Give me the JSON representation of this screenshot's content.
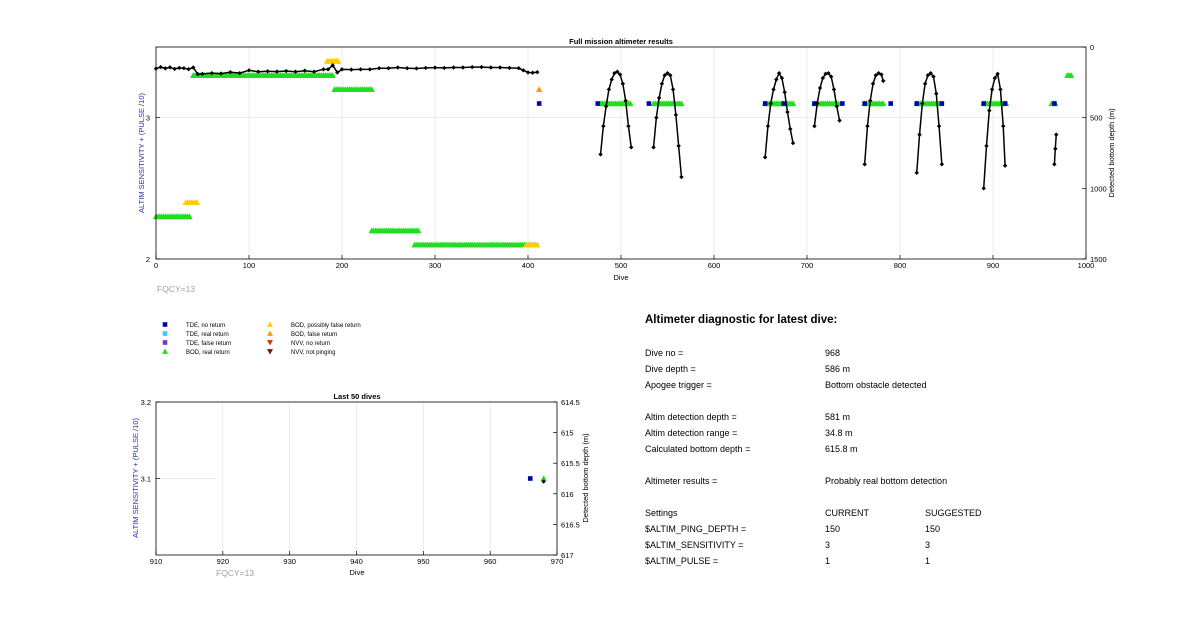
{
  "main_chart": {
    "title": "Full mission altimeter results",
    "xlabel": "Dive",
    "ylabel_left": "ALTIM SENSITIVITY + (PULSE /10)",
    "ylabel_right": "Detected bottom depth (m)",
    "fqcy": "FQCY=13"
  },
  "last_chart": {
    "title": "Last 50 dives",
    "xlabel": "Dive",
    "ylabel_left": "ALTIM SENSITIVITY + (PULSE /10)",
    "ylabel_right": "Detected bottom depth (m)",
    "fqcy": "FQCY=13"
  },
  "legend": [
    {
      "label": "TDE, no return",
      "marker": "square",
      "color": "#0000aa"
    },
    {
      "label": "TDE, real return",
      "marker": "square",
      "color": "#33ccee"
    },
    {
      "label": "TDE, false return",
      "marker": "square",
      "color": "#7733cc"
    },
    {
      "label": "BOD, real return",
      "marker": "triangle-up",
      "color": "#22dd22"
    },
    {
      "label": "BOD, possibly false return",
      "marker": "triangle-up",
      "color": "#ffcc00"
    },
    {
      "label": "BOD, false return",
      "marker": "triangle-up",
      "color": "#ff9900"
    },
    {
      "label": "NVV, no return",
      "marker": "triangle-down",
      "color": "#dd3300"
    },
    {
      "label": "NVV, not pinging",
      "marker": "triangle-down",
      "color": "#771100"
    }
  ],
  "diagnostic": {
    "title": "Altimeter diagnostic for latest dive:",
    "rows1": [
      {
        "label": "Dive no =",
        "value": "968"
      },
      {
        "label": "Dive depth =",
        "value": "586 m"
      },
      {
        "label": "Apogee trigger =",
        "value": "Bottom obstacle detected"
      }
    ],
    "rows2": [
      {
        "label": "Altim detection depth =",
        "value": "581 m"
      },
      {
        "label": "Altim detection range =",
        "value": "34.8 m"
      },
      {
        "label": "Calculated bottom depth =",
        "value": "615.8 m"
      }
    ],
    "result": {
      "label": "Altimeter results =",
      "value": "Probably real bottom detection"
    },
    "settings_header": {
      "label": "Settings",
      "current": "CURRENT",
      "suggested": "SUGGESTED"
    },
    "settings": [
      {
        "label": "$ALTIM_PING_DEPTH =",
        "current": "150",
        "suggested": "150"
      },
      {
        "label": "$ALTIM_SENSITIVITY =",
        "current": "3",
        "suggested": "3"
      },
      {
        "label": "$ALTIM_PULSE =",
        "current": "1",
        "suggested": "1"
      }
    ]
  },
  "chart_data": [
    {
      "type": "scatter",
      "title": "Full mission altimeter results",
      "xlabel": "Dive",
      "ylabel": "ALTIM SENSITIVITY + (PULSE /10)",
      "y2label": "Detected bottom depth (m)",
      "xlim": [
        0,
        1000
      ],
      "ylim": [
        2,
        3.5
      ],
      "y2lim": [
        1500,
        0
      ],
      "y2_reversed": true,
      "xticks": [
        0,
        100,
        200,
        300,
        400,
        500,
        600,
        700,
        800,
        900,
        1000
      ],
      "yticks": [
        2,
        3
      ],
      "y2ticks": [
        0,
        500,
        1000,
        1500
      ],
      "grid": true,
      "marker_series": [
        {
          "name": "BOD, real return",
          "color": "#22dd22",
          "marker": "triangle-up",
          "y": 3.3,
          "ranges": [
            [
              40,
              190
            ],
            [
              980,
              985
            ]
          ]
        },
        {
          "name": "BOD, real return",
          "color": "#22dd22",
          "marker": "triangle-up",
          "y": 3.2,
          "ranges": [
            [
              192,
              232
            ]
          ]
        },
        {
          "name": "BOD, real return",
          "color": "#22dd22",
          "marker": "triangle-up",
          "y": 2.3,
          "ranges": [
            [
              0,
              37
            ]
          ]
        },
        {
          "name": "BOD, real return",
          "color": "#22dd22",
          "marker": "triangle-up",
          "y": 2.2,
          "ranges": [
            [
              232,
              282
            ]
          ]
        },
        {
          "name": "BOD, real return",
          "color": "#22dd22",
          "marker": "triangle-up",
          "y": 2.1,
          "ranges": [
            [
              278,
              408
            ]
          ]
        },
        {
          "name": "BOD, real return",
          "color": "#22dd22",
          "marker": "triangle-up",
          "y": 3.1,
          "ranges": [
            [
              478,
              511
            ],
            [
              535,
              565
            ],
            [
              655,
              685
            ],
            [
              708,
              735
            ],
            [
              762,
              782
            ],
            [
              818,
              845
            ],
            [
              890,
              915
            ],
            [
              963,
              968
            ]
          ]
        },
        {
          "name": "BOD, possibly false return",
          "color": "#ffcc00",
          "marker": "triangle-up",
          "y": 3.4,
          "ranges": [
            [
              184,
              196
            ]
          ]
        },
        {
          "name": "BOD, possibly false return",
          "color": "#ffcc00",
          "marker": "triangle-up",
          "y": 2.4,
          "ranges": [
            [
              32,
              44
            ]
          ]
        },
        {
          "name": "BOD, possibly false return",
          "color": "#ffcc00",
          "marker": "triangle-up",
          "y": 2.1,
          "ranges": [
            [
              398,
              410
            ]
          ]
        },
        {
          "name": "BOD, false return",
          "color": "#ff9900",
          "marker": "triangle-up",
          "y": 3.2,
          "points": [
            412
          ]
        }
      ],
      "tde_no_return": {
        "name": "TDE, no return",
        "color": "#0000aa",
        "y": 3.1,
        "x": [
          412,
          475,
          530,
          655,
          675,
          708,
          738,
          762,
          790,
          818,
          845,
          890,
          913,
          966
        ]
      },
      "depth_series_color": "#000000",
      "depth_series": [
        {
          "x": [
            0,
            5,
            10,
            15,
            20,
            25,
            30,
            35,
            40,
            45,
            50,
            60,
            70,
            80,
            90,
            100,
            110,
            120,
            130,
            140,
            150,
            160,
            170,
            180,
            185,
            190,
            195,
            200,
            210,
            220,
            230,
            240,
            250,
            260,
            270,
            280,
            290,
            300,
            310,
            320,
            330,
            340,
            350,
            360,
            370,
            380,
            390,
            395,
            400,
            405,
            410
          ],
          "y": [
            153,
            142,
            151,
            144,
            155,
            148,
            150,
            157,
            145,
            192,
            190,
            185,
            188,
            178,
            185,
            165,
            175,
            172,
            174,
            170,
            175,
            168,
            175,
            158,
            158,
            130,
            180,
            158,
            160,
            158,
            158,
            150,
            150,
            145,
            150,
            152,
            148,
            146,
            148,
            145,
            145,
            142,
            142,
            145,
            145,
            148,
            150,
            165,
            180,
            182,
            178
          ]
        },
        {
          "x": [
            478,
            481,
            484,
            487,
            490,
            493,
            496,
            499,
            502,
            505,
            508,
            511
          ],
          "y": [
            760,
            560,
            420,
            300,
            230,
            185,
            175,
            195,
            260,
            380,
            560,
            710
          ]
        },
        {
          "x": [
            535,
            538,
            541,
            544,
            547,
            550,
            553,
            556,
            559,
            562,
            565
          ],
          "y": [
            710,
            500,
            360,
            260,
            200,
            185,
            200,
            300,
            480,
            700,
            920
          ]
        },
        {
          "x": [
            655,
            658,
            661,
            664,
            667,
            670,
            673,
            676,
            679,
            682,
            685
          ],
          "y": [
            780,
            560,
            400,
            300,
            230,
            185,
            220,
            320,
            460,
            580,
            680
          ]
        },
        {
          "x": [
            708,
            711,
            714,
            717,
            720,
            723,
            726,
            729,
            732,
            735
          ],
          "y": [
            560,
            400,
            290,
            220,
            190,
            185,
            210,
            300,
            420,
            520
          ]
        },
        {
          "x": [
            762,
            765,
            768,
            771,
            774,
            777,
            780,
            782
          ],
          "y": [
            830,
            560,
            380,
            260,
            200,
            185,
            195,
            240
          ]
        },
        {
          "x": [
            818,
            821,
            824,
            827,
            830,
            833,
            836,
            839,
            842,
            845
          ],
          "y": [
            890,
            620,
            400,
            260,
            200,
            185,
            210,
            330,
            560,
            830
          ]
        },
        {
          "x": [
            890,
            893,
            896,
            899,
            902,
            905,
            908,
            911,
            913
          ],
          "y": [
            1000,
            700,
            450,
            300,
            220,
            190,
            300,
            560,
            840
          ]
        },
        {
          "x": [
            966,
            967,
            968
          ],
          "y": [
            830,
            720,
            620
          ]
        }
      ]
    },
    {
      "type": "scatter",
      "title": "Last 50 dives",
      "xlabel": "Dive",
      "ylabel": "ALTIM SENSITIVITY + (PULSE /10)",
      "y2label": "Detected bottom depth (m)",
      "xlim": [
        910,
        970
      ],
      "ylim": [
        3,
        3.2
      ],
      "y2lim": [
        617,
        614.5
      ],
      "y2_reversed": true,
      "xticks": [
        910,
        920,
        930,
        940,
        950,
        960,
        970
      ],
      "yticks": [
        3.1,
        3.2
      ],
      "y2ticks": [
        614.5,
        615,
        615.5,
        616,
        616.5,
        617
      ],
      "grid": true,
      "points": [
        {
          "name": "TDE, no return",
          "color": "#0000aa",
          "marker": "square",
          "x": 966,
          "y": 3.1
        },
        {
          "name": "BOD, real return",
          "color": "#22dd22",
          "marker": "triangle-up",
          "x": 968,
          "y": 3.1
        }
      ],
      "depth_points": [
        {
          "x": 968,
          "y": 615.8
        }
      ]
    }
  ]
}
